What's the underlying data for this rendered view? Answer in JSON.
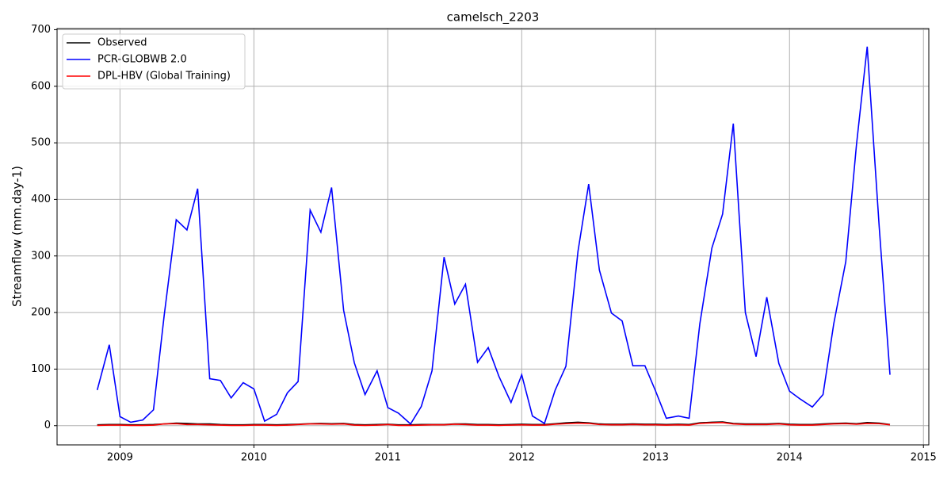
{
  "chart_data": {
    "type": "line",
    "title": "camelsch_2203",
    "ylabel": "Streamflow (mm.day-1)",
    "x": [
      2008.83,
      2008.92,
      2009,
      2009.08,
      2009.17,
      2009.25,
      2009.33,
      2009.42,
      2009.5,
      2009.58,
      2009.67,
      2009.75,
      2009.83,
      2009.92,
      2010,
      2010.08,
      2010.17,
      2010.25,
      2010.33,
      2010.42,
      2010.5,
      2010.58,
      2010.67,
      2010.75,
      2010.83,
      2010.92,
      2011,
      2011.08,
      2011.17,
      2011.25,
      2011.33,
      2011.42,
      2011.5,
      2011.58,
      2011.67,
      2011.75,
      2011.83,
      2011.92,
      2012,
      2012.08,
      2012.17,
      2012.25,
      2012.33,
      2012.42,
      2012.5,
      2012.58,
      2012.67,
      2012.75,
      2012.83,
      2012.92,
      2013,
      2013.08,
      2013.17,
      2013.25,
      2013.33,
      2013.42,
      2013.5,
      2013.58,
      2013.67,
      2013.75,
      2013.83,
      2013.92,
      2014,
      2014.08,
      2014.17,
      2014.25,
      2014.33,
      2014.42,
      2014.5,
      2014.58,
      2014.67,
      2014.75
    ],
    "series": [
      {
        "name": "Observed",
        "color": "#000000",
        "values": [
          1.5,
          2,
          2,
          1.5,
          1.5,
          2,
          3,
          4.5,
          4,
          3,
          3,
          2,
          1.5,
          1.5,
          2,
          2,
          1.5,
          2,
          2.5,
          3.5,
          4,
          3.5,
          4,
          2,
          1.5,
          2,
          2.5,
          1.5,
          1.5,
          2,
          2,
          2,
          3,
          3,
          2,
          2,
          1.5,
          2,
          2.5,
          2,
          2,
          3.5,
          5,
          6,
          5,
          3,
          2.5,
          2.5,
          3,
          2.5,
          2.5,
          2,
          2.5,
          2,
          5,
          6,
          6.5,
          4,
          3,
          3,
          3,
          4,
          2.5,
          2,
          2,
          3,
          4,
          4.5,
          3.5,
          5.5,
          4.5,
          2
        ]
      },
      {
        "name": "PCR-GLOBWB 2.0",
        "color": "#0000ff",
        "values": [
          63,
          143,
          16,
          6,
          10,
          28,
          195,
          364,
          346,
          419,
          83,
          80,
          49,
          76,
          65,
          8,
          20,
          58,
          78,
          381,
          342,
          421,
          204,
          111,
          55,
          97,
          32,
          22,
          3,
          34,
          97,
          298,
          215,
          250,
          112,
          138,
          87,
          41,
          90,
          17,
          4,
          63,
          105,
          308,
          427,
          275,
          199,
          185,
          106,
          106,
          61,
          13,
          17,
          13,
          180,
          314,
          374,
          534,
          200,
          122,
          227,
          110,
          61,
          47,
          33,
          55,
          180,
          290,
          497,
          670,
          350,
          90
        ]
      },
      {
        "name": "DPL-HBV (Global Training)",
        "color": "#ff0000",
        "values": [
          0.5,
          1,
          1,
          0.5,
          0.5,
          1,
          3,
          3.5,
          2,
          2,
          1.5,
          1,
          0.5,
          0.5,
          1,
          1,
          0.5,
          1,
          2,
          3,
          3,
          2.5,
          3,
          1,
          0.5,
          1,
          2,
          0.5,
          0.5,
          1,
          1.5,
          1.5,
          2.5,
          2,
          1,
          1,
          0.5,
          1,
          1.5,
          1,
          1,
          2.5,
          3.5,
          4.5,
          4,
          2,
          1.5,
          1.5,
          2,
          1.5,
          1.5,
          1,
          1.5,
          1,
          4,
          5,
          5.5,
          3,
          2,
          2,
          2,
          3,
          1.5,
          1,
          1,
          2,
          3,
          3.5,
          2.5,
          4,
          3.5,
          1.5
        ]
      }
    ],
    "xlim": [
      2008.53,
      2015.04
    ],
    "xticks": [
      2009,
      2010,
      2011,
      2012,
      2013,
      2014,
      2015
    ],
    "ylim": [
      -34,
      702
    ],
    "yticks": [
      0,
      100,
      200,
      300,
      400,
      500,
      600,
      700
    ],
    "grid": true,
    "legend": "upper-left"
  }
}
